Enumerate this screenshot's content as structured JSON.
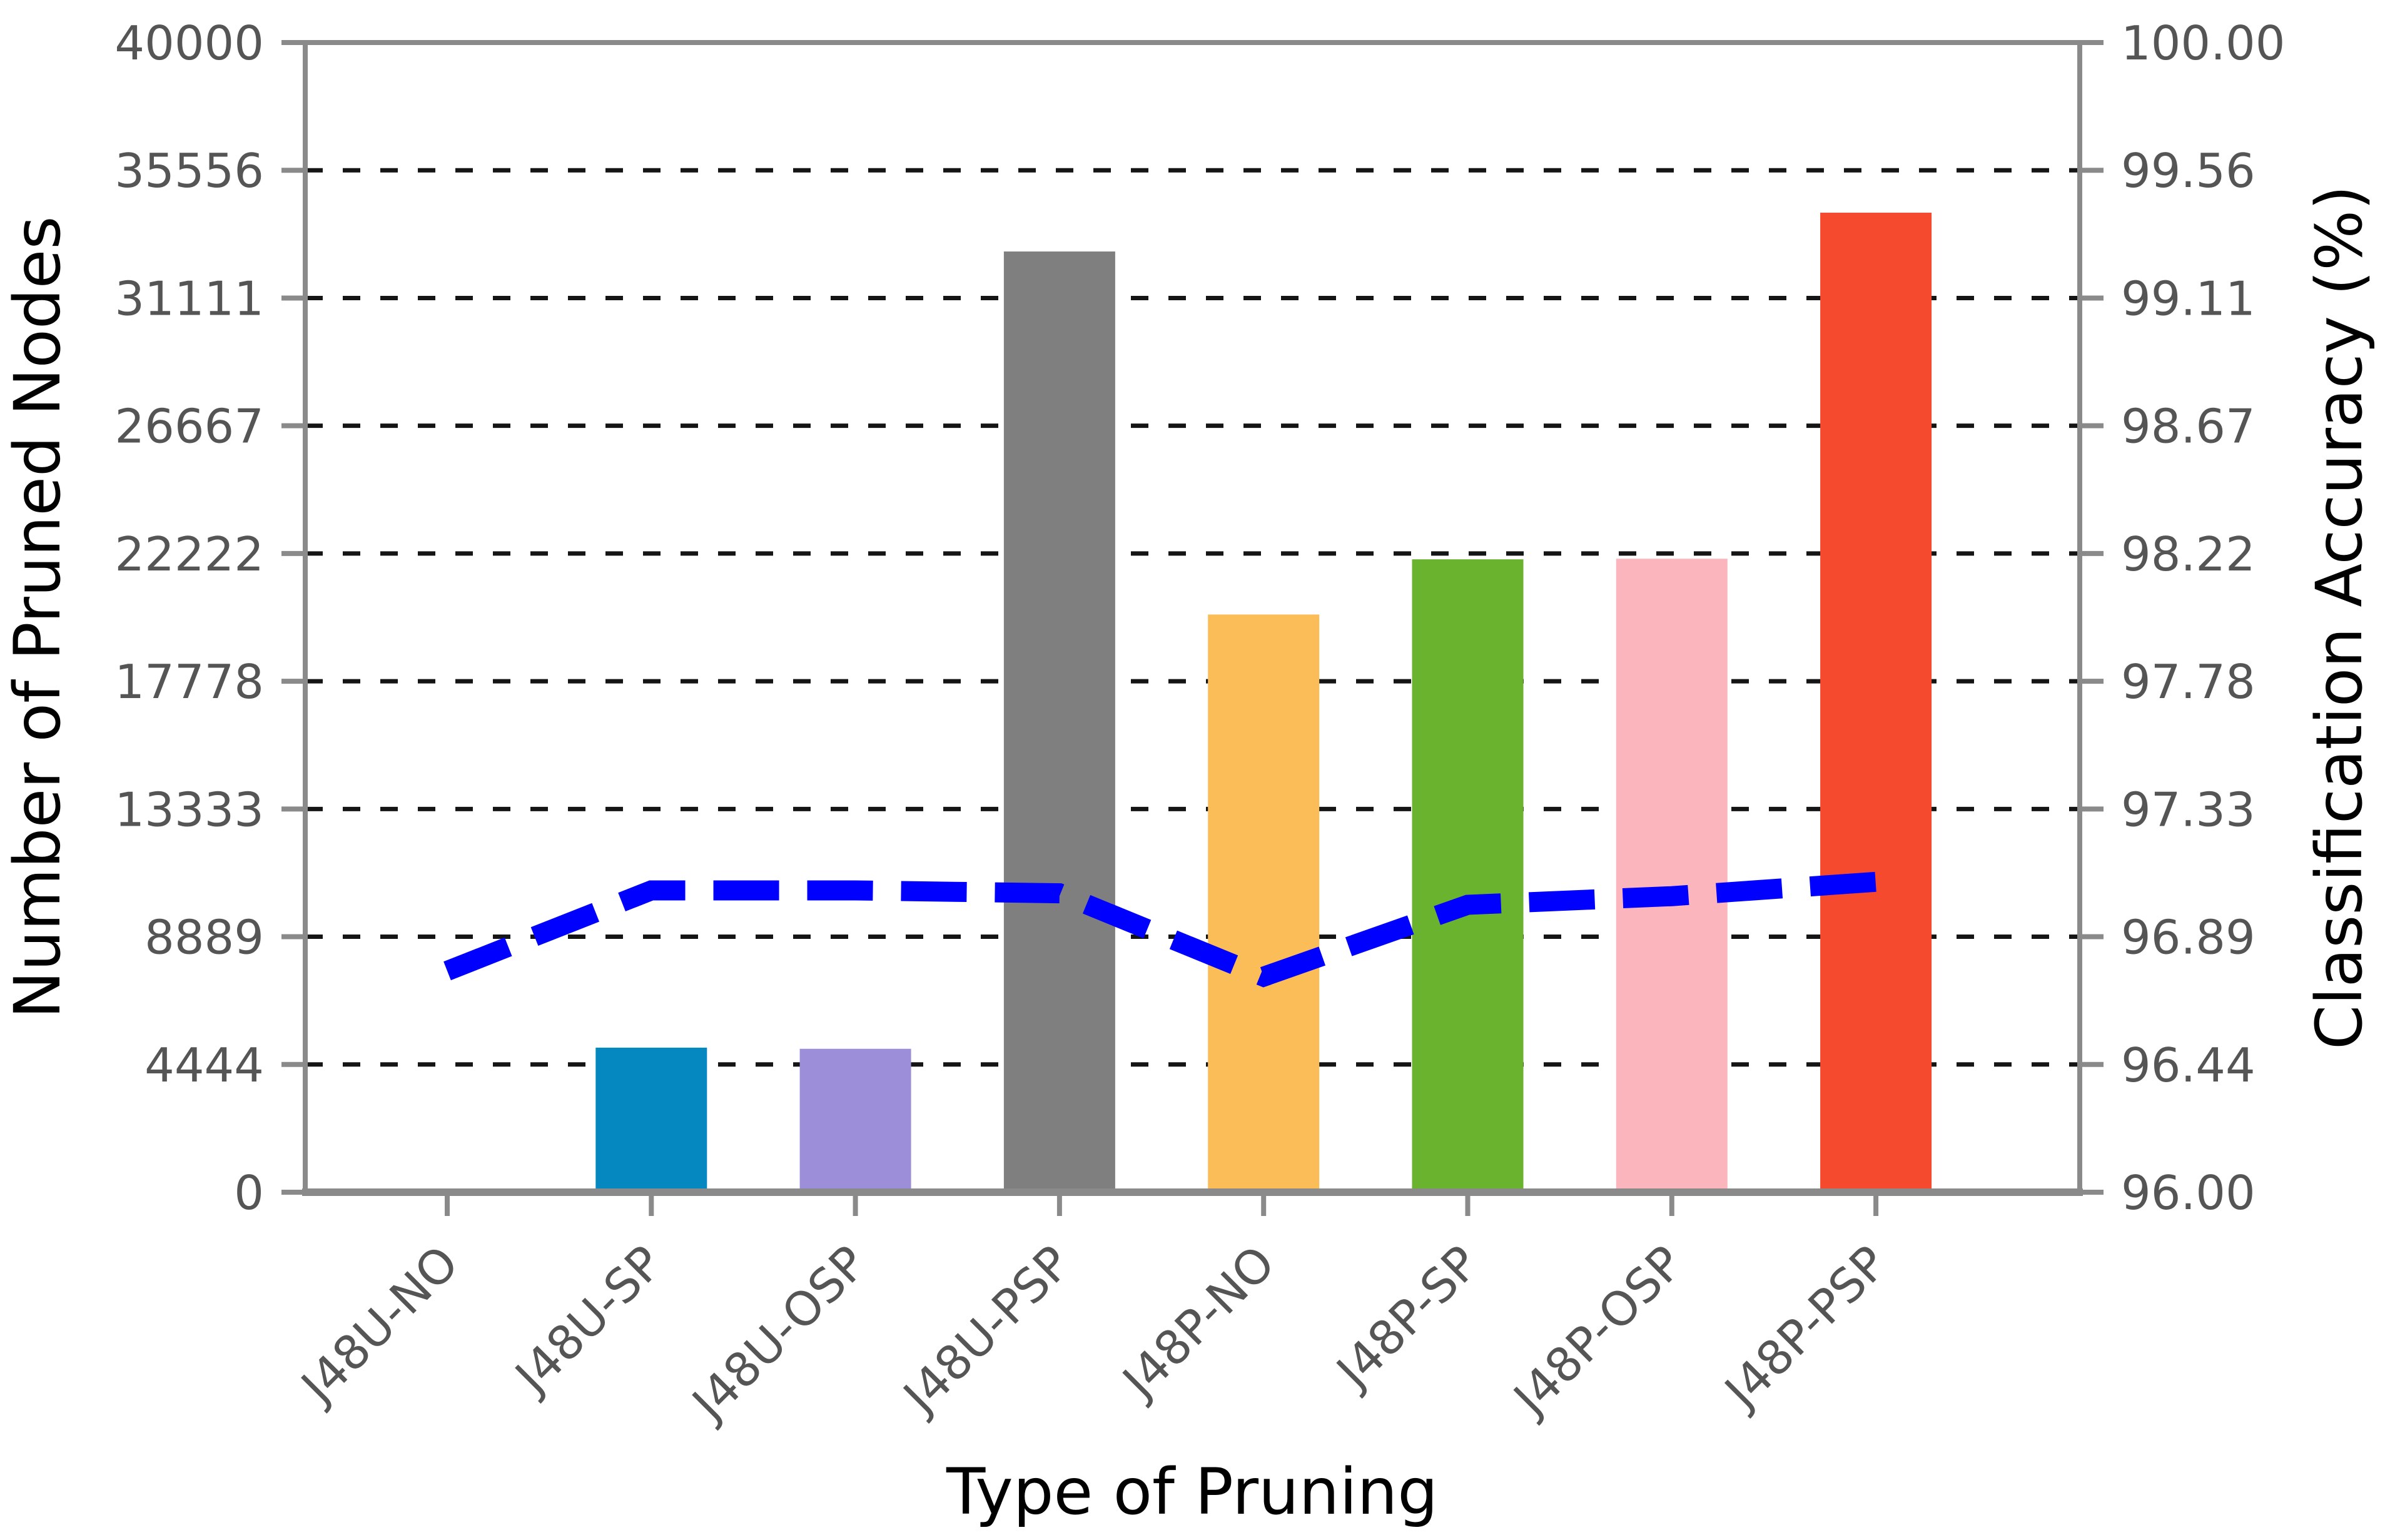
{
  "chart_data": {
    "type": "bar",
    "title": "",
    "xlabel": "Type of Pruning",
    "ylabel_left": "Number of Pruned Nodes",
    "ylabel_right": "Classification Accuracy (%)",
    "grid": "horizontal-dashed-black",
    "legend": "none",
    "categories": [
      "J48U-NO",
      "J48U-SP",
      "J48U-OSP",
      "J48U-PSP",
      "J48P-NO",
      "J48P-SP",
      "J48P-OSP",
      "J48P-PSP"
    ],
    "series": [
      {
        "name": "Number of Pruned Nodes",
        "type": "bar",
        "axis": "left",
        "values": [
          0,
          5030,
          4990,
          32730,
          20100,
          22020,
          22040,
          34080
        ],
        "bar_colors": [
          "none",
          "#0588bf",
          "#9c8ed8",
          "#7f7f7f",
          "#fbbd57",
          "#6ab32e",
          "#fbb5bc",
          "#f64a2e"
        ]
      },
      {
        "name": "Classification Accuracy (%)",
        "type": "line",
        "axis": "right",
        "style": "dashed",
        "color": "#0000ff",
        "values": [
          96.77,
          97.05,
          97.05,
          97.04,
          96.75,
          97.0,
          97.03,
          97.08
        ]
      }
    ],
    "y_axis_left": {
      "min": 0,
      "max": 40000,
      "tick_values": [
        0,
        4444,
        8889,
        13333,
        17778,
        22222,
        26667,
        31111,
        35556,
        40000
      ],
      "tick_labels": [
        "0",
        "4444",
        "8889",
        "13333",
        "17778",
        "22222",
        "26667",
        "31111",
        "35556",
        "40000"
      ]
    },
    "y_axis_right": {
      "min": 96.0,
      "max": 100.0,
      "tick_labels": [
        "96.00",
        "96.44",
        "96.89",
        "97.33",
        "97.78",
        "98.22",
        "98.67",
        "99.11",
        "99.56",
        "100.00"
      ]
    }
  },
  "style_colors": {
    "spine": "#8a8a8a",
    "tick_mark": "#8a8a8a",
    "tick_label": "#555555",
    "axis_title": "#000000",
    "gridline": "#151515",
    "background": "#ffffff"
  }
}
